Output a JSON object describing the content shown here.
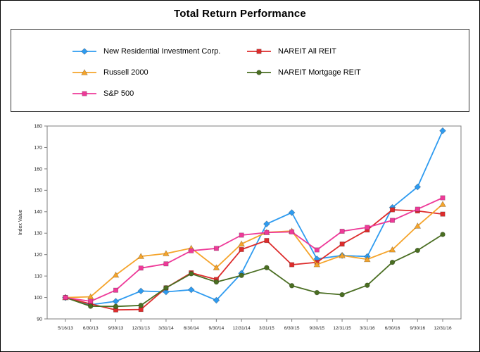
{
  "title": "Total Return Performance",
  "chart_data": {
    "type": "line",
    "title": "Total Return Performance",
    "xlabel": "",
    "ylabel": "Index Value",
    "ylim": [
      90,
      180
    ],
    "ytick_step": 10,
    "grid": false,
    "legend_position": "top",
    "categories": [
      "5/16/13",
      "6/30/13",
      "9/30/13",
      "12/31/13",
      "3/31/14",
      "6/30/14",
      "9/30/14",
      "12/31/14",
      "3/31/15",
      "6/30/15",
      "9/30/15",
      "12/31/15",
      "3/31/16",
      "6/30/16",
      "9/30/16",
      "12/31/16"
    ],
    "series": [
      {
        "name": "New Residential Investment Corp.",
        "marker": "diamond",
        "color": "#2E9BF0",
        "values": [
          100,
          96.6,
          98.2,
          103.0,
          102.6,
          103.6,
          98.7,
          111.3,
          134.3,
          139.6,
          118.0,
          119.6,
          119.1,
          142.0,
          151.6,
          177.8
        ]
      },
      {
        "name": "NAREIT All REIT",
        "marker": "square",
        "color": "#DD2C2C",
        "values": [
          100,
          97.0,
          94.2,
          94.4,
          104.5,
          111.5,
          108.4,
          122.4,
          126.6,
          115.3,
          116.4,
          124.9,
          131.5,
          140.9,
          140.4,
          138.9
        ]
      },
      {
        "name": "Russell 2000",
        "marker": "triangle",
        "color": "#F5A42B",
        "values": [
          100,
          100.3,
          110.5,
          119.2,
          120.5,
          123.0,
          113.9,
          125.0,
          130.4,
          131.0,
          115.4,
          119.6,
          117.8,
          122.3,
          133.4,
          143.5
        ]
      },
      {
        "name": "NAREIT Mortgage REIT",
        "marker": "circle",
        "color": "#4A6E22",
        "values": [
          100,
          95.9,
          95.8,
          96.3,
          104.5,
          111.1,
          107.2,
          110.3,
          113.9,
          105.5,
          102.3,
          101.3,
          105.7,
          116.4,
          122.0,
          129.4
        ]
      },
      {
        "name": "S&P 500",
        "marker": "square",
        "color": "#EE3A99",
        "values": [
          100,
          98.2,
          103.4,
          113.7,
          115.7,
          121.8,
          122.9,
          129.1,
          130.3,
          130.6,
          122.2,
          130.9,
          132.7,
          136.0,
          141.2,
          146.5
        ]
      }
    ]
  }
}
